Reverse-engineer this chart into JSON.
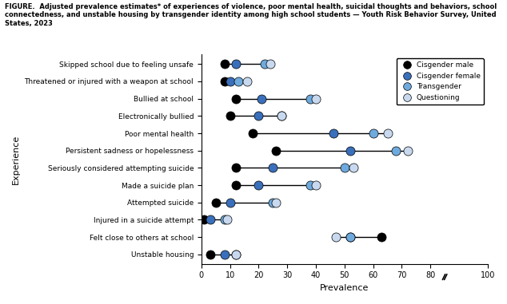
{
  "title": "FIGURE. Adjusted prevalence estimates* of experiences of violence, poor mental health, suicidal thoughts and behaviors, school\nconnectedness, and unstable housing by transgender identity among high school students — Youth Risk Behavior Survey, United\nStates, 2023",
  "xlabel": "Prevalence",
  "ylabel": "Experience",
  "categories": [
    "Skipped school due to feeling unsafe",
    "Threatened or injured with a weapon at school",
    "Bullied at school",
    "Electronically bullied",
    "Poor mental health",
    "Persistent sadness or hopelessness",
    "Seriously considered attempting suicide",
    "Made a suicide plan",
    "Attempted suicide",
    "Injured in a suicide attempt",
    "Felt close to others at school",
    "Unstable housing"
  ],
  "data": {
    "cisgender_male": [
      8,
      8,
      12,
      10,
      18,
      26,
      12,
      12,
      5,
      1,
      63,
      3
    ],
    "cisgender_female": [
      12,
      10,
      21,
      20,
      46,
      52,
      25,
      20,
      10,
      3,
      52,
      8
    ],
    "transgender": [
      22,
      13,
      38,
      28,
      60,
      68,
      50,
      38,
      25,
      8,
      52,
      12
    ],
    "questioning": [
      24,
      16,
      40,
      28,
      65,
      72,
      53,
      40,
      26,
      9,
      47,
      12
    ]
  },
  "colors": {
    "cisgender_male": "#000000",
    "cisgender_female": "#3a6fbb",
    "transgender": "#6eaadd",
    "questioning": "#c8d9ef"
  },
  "legend_labels": [
    "Cisgender male",
    "Cisgender female",
    "Transgender",
    "Questioning"
  ],
  "xticks": [
    0,
    10,
    20,
    30,
    40,
    50,
    60,
    70,
    80,
    100
  ],
  "xticklabels": [
    "0",
    "10",
    "20",
    "30",
    "40",
    "50",
    "60",
    "70",
    "80",
    "100"
  ],
  "xlim": [
    0,
    100
  ],
  "marker_size": 8,
  "background_color": "#ffffff"
}
